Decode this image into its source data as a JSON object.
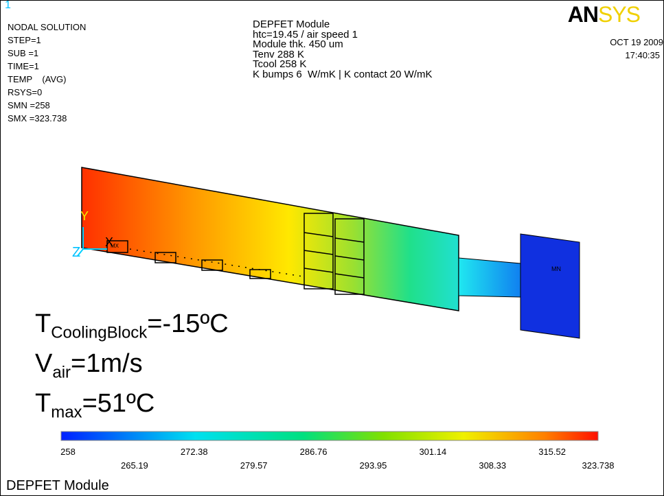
{
  "window_number": "1",
  "info": [
    "NODAL SOLUTION",
    "STEP=1",
    "SUB =1",
    "TIME=1",
    "TEMP    (AVG)",
    "RSYS=0",
    "SMN =258",
    "SMX =323.738"
  ],
  "title_lines": [
    "DEPFET Module",
    "htc=19.45 / air speed 1",
    "Module thk. 450 um",
    "Tenv 288 K",
    "Tcool 258 K",
    "K bumps 6  W/mK | K contact 20 W/mK"
  ],
  "logo": [
    "AN",
    "SYS"
  ],
  "date": "OCT 19 2009",
  "time": "17:40:35",
  "axes": {
    "y": "Y",
    "x": "X",
    "z": "Z"
  },
  "markers": {
    "mn": "MN",
    "mx": "MX"
  },
  "annotations": [
    {
      "main": "T",
      "sub": "CoolingBlock",
      "rest": "=-15ºC"
    },
    {
      "main": "V",
      "sub": "air",
      "rest": "=1m/s"
    },
    {
      "main": "T",
      "sub": "max",
      "rest": "=51ºC"
    }
  ],
  "colorbar_labels": [
    258,
    265.19,
    272.38,
    279.57,
    286.76,
    293.95,
    301.14,
    308.33,
    315.52,
    323.738
  ],
  "footer": "DEPFET Module"
}
